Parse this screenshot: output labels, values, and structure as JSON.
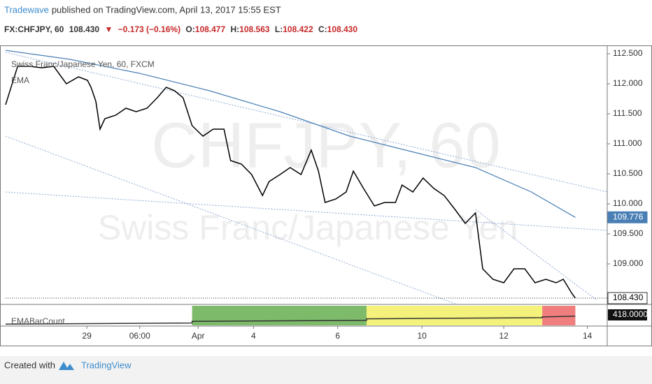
{
  "header": {
    "author": "Tradewave",
    "published": "published on TradingView.com, April 13, 2017 15:55 EST"
  },
  "quote": {
    "symbol": "FX:CHFJPY, 60",
    "last": "108.430",
    "arrow": "▼",
    "change": "−0.173 (−0.16%)",
    "open_label": "O:",
    "open": "108.477",
    "high_label": "H:",
    "high": "108.563",
    "low_label": "L:",
    "low": "108.422",
    "close_label": "C:",
    "close": "108.430"
  },
  "chart_data": {
    "type": "line",
    "watermark": "CHFJPY, 60",
    "watermark_subtitle": "Swiss Franc/Japanese Yen",
    "xlim": [
      0,
      100
    ],
    "ylim": [
      108.337,
      112.64
    ],
    "yticks": [
      {
        "value": 112.5,
        "label": "112.500"
      },
      {
        "value": 112,
        "label": "112.000"
      },
      {
        "value": 111.5,
        "label": "111.500"
      },
      {
        "value": 111,
        "label": "111.000"
      },
      {
        "value": 110.5,
        "label": "110.500"
      },
      {
        "value": 110,
        "label": "110.000"
      },
      {
        "value": 109.5,
        "label": "109.500"
      },
      {
        "value": 109,
        "label": "109.000"
      }
    ],
    "xticks": [
      {
        "value": 13.5,
        "label": "29"
      },
      {
        "value": 22.3,
        "label": "06:00"
      },
      {
        "value": 32,
        "label": "Apr"
      },
      {
        "value": 41.2,
        "label": "4"
      },
      {
        "value": 55.2,
        "label": "6"
      },
      {
        "value": 69.2,
        "label": "10"
      },
      {
        "value": 82.8,
        "label": "12"
      },
      {
        "value": 96.7,
        "label": "14"
      }
    ],
    "series": [
      {
        "name": "Swiss Franc/Japanese Yen, 60, FXCM",
        "color": "#000000",
        "x": [
          0,
          2,
          4.1,
          6,
          8,
          10.1,
          12.1,
          13.6,
          14.2,
          15,
          15.7,
          16.5,
          18.3,
          20,
          21.7,
          23.5,
          25.2,
          26.7,
          28.1,
          29.5,
          31,
          32.8,
          34.5,
          36.3,
          37.4,
          39.2,
          40.9,
          42.7,
          43.8,
          45.6,
          47.3,
          49.1,
          50.8,
          52,
          53.1,
          54.9,
          56.6,
          57.8,
          59.5,
          61.3,
          63,
          64.8,
          65.9,
          67.7,
          69.4,
          71.2,
          72.9,
          74.7,
          76.4,
          78.1,
          79.3,
          81,
          82.8,
          84.5,
          86.3,
          88,
          89.8,
          91.5,
          92.7,
          94.1,
          94.7
        ],
        "values": [
          111.651,
          112.291,
          112.291,
          112.267,
          112.291,
          112.0,
          112.116,
          112.058,
          111.942,
          111.709,
          111.244,
          111.419,
          111.477,
          111.593,
          111.535,
          111.593,
          111.767,
          111.942,
          111.884,
          111.767,
          111.302,
          111.128,
          111.244,
          111.244,
          110.721,
          110.663,
          110.488,
          110.14,
          110.372,
          110.488,
          110.605,
          110.488,
          110.895,
          110.547,
          110.023,
          110.081,
          110.198,
          110.547,
          110.256,
          109.965,
          110.023,
          110.023,
          110.314,
          110.198,
          110.43,
          110.256,
          110.14,
          109.907,
          109.674,
          109.849,
          108.919,
          108.744,
          108.686,
          108.919,
          108.919,
          108.686,
          108.744,
          108.686,
          108.744,
          108.512,
          108.43
        ]
      },
      {
        "name": "EMA",
        "color": "#4a7fb5",
        "x": [
          0,
          10.7,
          22.3,
          33.9,
          45.6,
          57.2,
          68.8,
          78.1,
          87.4,
          94.7
        ],
        "values": [
          112.558,
          112.407,
          112.174,
          111.884,
          111.535,
          111.128,
          110.837,
          110.605,
          110.198,
          109.776
        ]
      }
    ],
    "price_labels": [
      {
        "value": 109.776,
        "label": "109.776",
        "color": "#4a7fb5"
      },
      {
        "value": 108.43,
        "label": "108.430",
        "color": "#ffffff"
      }
    ],
    "trend_color": "#8fa9d4",
    "trend_lines": [
      {
        "x": [
          0,
          100
        ],
        "values": [
          112.523,
          110.198
        ]
      },
      {
        "x": [
          0,
          74.7
        ],
        "values": [
          111.128,
          108.337
        ]
      },
      {
        "x": [
          0,
          100
        ],
        "values": [
          110.198,
          109.558
        ]
      },
      {
        "x": [
          78.1,
          98.3
        ],
        "values": [
          109.907,
          108.395
        ]
      }
    ],
    "indicator": {
      "name": "EMABarCount",
      "value": 418,
      "value_label": "418.0000",
      "ylim": [
        -100,
        1000
      ],
      "x": [
        0,
        31,
        31,
        60,
        60,
        89.2,
        89.2,
        94.7
      ],
      "values": [
        0,
        60,
        150,
        200,
        280,
        340,
        380,
        418
      ],
      "zones": [
        {
          "start": 31,
          "end": 60,
          "color": "#7dbb6a"
        },
        {
          "start": 60,
          "end": 89.2,
          "color": "#f4f27a"
        },
        {
          "start": 89.2,
          "end": 94.7,
          "color": "#f07e7e"
        }
      ]
    }
  },
  "footer": {
    "prefix": "Created with",
    "brand": "TradingView"
  }
}
